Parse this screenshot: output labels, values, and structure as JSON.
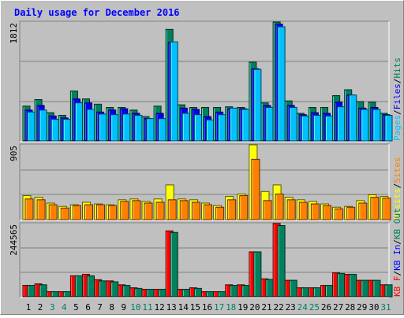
{
  "title": "Daily usage for December 2016",
  "colors": {
    "title": "#0000ff",
    "hits": "#00805c",
    "files": "#0000ff",
    "pages": "#00c0ff",
    "visits": "#ffff00",
    "sites": "#ff8000",
    "kb_in": "#0000ff",
    "kb_out": "#00805c",
    "kb_f": "#ff0000",
    "weekend_day": "#00805c",
    "weekday": "#000000"
  },
  "chart_data": [
    {
      "type": "bar",
      "max_label": "1812",
      "ylim": [
        0,
        1812
      ],
      "legend": [
        {
          "text": "Pages",
          "color": "#00c0ff"
        },
        {
          "text": "/",
          "color": "#000000"
        },
        {
          "text": "Files",
          "color": "#0000ff"
        },
        {
          "text": "/",
          "color": "#000000"
        },
        {
          "text": "Hits",
          "color": "#00805c"
        }
      ],
      "categories": [
        "1",
        "2",
        "3",
        "4",
        "5",
        "6",
        "7",
        "8",
        "9",
        "10",
        "11",
        "12",
        "13",
        "14",
        "15",
        "16",
        "17",
        "18",
        "19",
        "20",
        "21",
        "22",
        "23",
        "24",
        "25",
        "26",
        "27",
        "28",
        "29",
        "30",
        "31"
      ],
      "series": [
        {
          "name": "Hits",
          "values": [
            530,
            630,
            430,
            390,
            760,
            640,
            560,
            510,
            510,
            470,
            370,
            530,
            1700,
            550,
            510,
            510,
            510,
            520,
            510,
            1200,
            580,
            1830,
            610,
            420,
            510,
            510,
            690,
            780,
            600,
            590,
            420
          ]
        },
        {
          "name": "Files",
          "values": [
            470,
            540,
            380,
            350,
            640,
            580,
            440,
            470,
            490,
            420,
            340,
            420,
            1500,
            500,
            480,
            370,
            440,
            490,
            490,
            1100,
            540,
            1780,
            540,
            400,
            430,
            420,
            590,
            700,
            500,
            510,
            400
          ]
        },
        {
          "name": "Pages",
          "values": [
            440,
            470,
            330,
            330,
            580,
            480,
            410,
            400,
            410,
            390,
            340,
            340,
            1510,
            420,
            400,
            320,
            400,
            500,
            480,
            1090,
            510,
            1740,
            510,
            380,
            390,
            380,
            520,
            700,
            480,
            480,
            390
          ]
        }
      ]
    },
    {
      "type": "bar",
      "max_label": "905",
      "ylim": [
        0,
        905
      ],
      "legend": [
        {
          "text": "Visits",
          "color": "#ffff00"
        },
        {
          "text": "/",
          "color": "#000000"
        },
        {
          "text": "Sites",
          "color": "#ff8000"
        }
      ],
      "categories": [
        "1",
        "2",
        "3",
        "4",
        "5",
        "6",
        "7",
        "8",
        "9",
        "10",
        "11",
        "12",
        "13",
        "14",
        "15",
        "16",
        "17",
        "18",
        "19",
        "20",
        "21",
        "22",
        "23",
        "24",
        "25",
        "26",
        "27",
        "28",
        "29",
        "30",
        "31"
      ],
      "series": [
        {
          "name": "Visits",
          "values": [
            290,
            270,
            200,
            160,
            180,
            210,
            190,
            180,
            240,
            250,
            220,
            250,
            420,
            250,
            240,
            200,
            170,
            280,
            310,
            920,
            340,
            420,
            270,
            240,
            220,
            190,
            150,
            160,
            230,
            300,
            280
          ]
        },
        {
          "name": "Sites",
          "values": [
            250,
            240,
            180,
            140,
            170,
            180,
            180,
            170,
            220,
            230,
            200,
            210,
            240,
            230,
            210,
            180,
            150,
            240,
            290,
            730,
            230,
            310,
            240,
            210,
            190,
            170,
            130,
            150,
            200,
            270,
            260
          ]
        }
      ]
    },
    {
      "type": "bar",
      "max_label": "244565",
      "ylim": [
        0,
        244565
      ],
      "legend": [
        {
          "text": "KB F",
          "color": "#ff0000"
        },
        {
          "text": "/",
          "color": "#000000"
        },
        {
          "text": "KB In",
          "color": "#0000ff"
        },
        {
          "text": "/",
          "color": "#000000"
        },
        {
          "text": "KB Out",
          "color": "#00805c"
        }
      ],
      "categories": [
        "1",
        "2",
        "3",
        "4",
        "5",
        "6",
        "7",
        "8",
        "9",
        "10",
        "11",
        "12",
        "13",
        "14",
        "15",
        "16",
        "17",
        "18",
        "19",
        "20",
        "21",
        "22",
        "23",
        "24",
        "25",
        "26",
        "27",
        "28",
        "29",
        "30",
        "31"
      ],
      "series": [
        {
          "name": "KB F",
          "values": [
            38000,
            43000,
            17000,
            17000,
            70000,
            75000,
            57000,
            53000,
            40000,
            30000,
            25000,
            25000,
            220000,
            25000,
            30000,
            17000,
            17000,
            40000,
            40000,
            150000,
            60000,
            255000,
            55000,
            30000,
            30000,
            38000,
            80000,
            75000,
            55000,
            55000,
            40000
          ]
        },
        {
          "name": "KB In",
          "values": [
            0,
            0,
            0,
            0,
            0,
            0,
            0,
            0,
            0,
            0,
            0,
            0,
            0,
            0,
            0,
            0,
            0,
            0,
            0,
            0,
            0,
            0,
            0,
            0,
            0,
            0,
            0,
            0,
            0,
            0,
            0
          ]
        },
        {
          "name": "KB Out",
          "values": [
            38000,
            40000,
            17000,
            17000,
            70000,
            70000,
            53000,
            50000,
            38000,
            28000,
            25000,
            25000,
            215000,
            25000,
            28000,
            17000,
            17000,
            38000,
            38000,
            150000,
            58000,
            238000,
            55000,
            30000,
            30000,
            38000,
            78000,
            75000,
            55000,
            55000,
            40000
          ]
        }
      ]
    }
  ]
}
